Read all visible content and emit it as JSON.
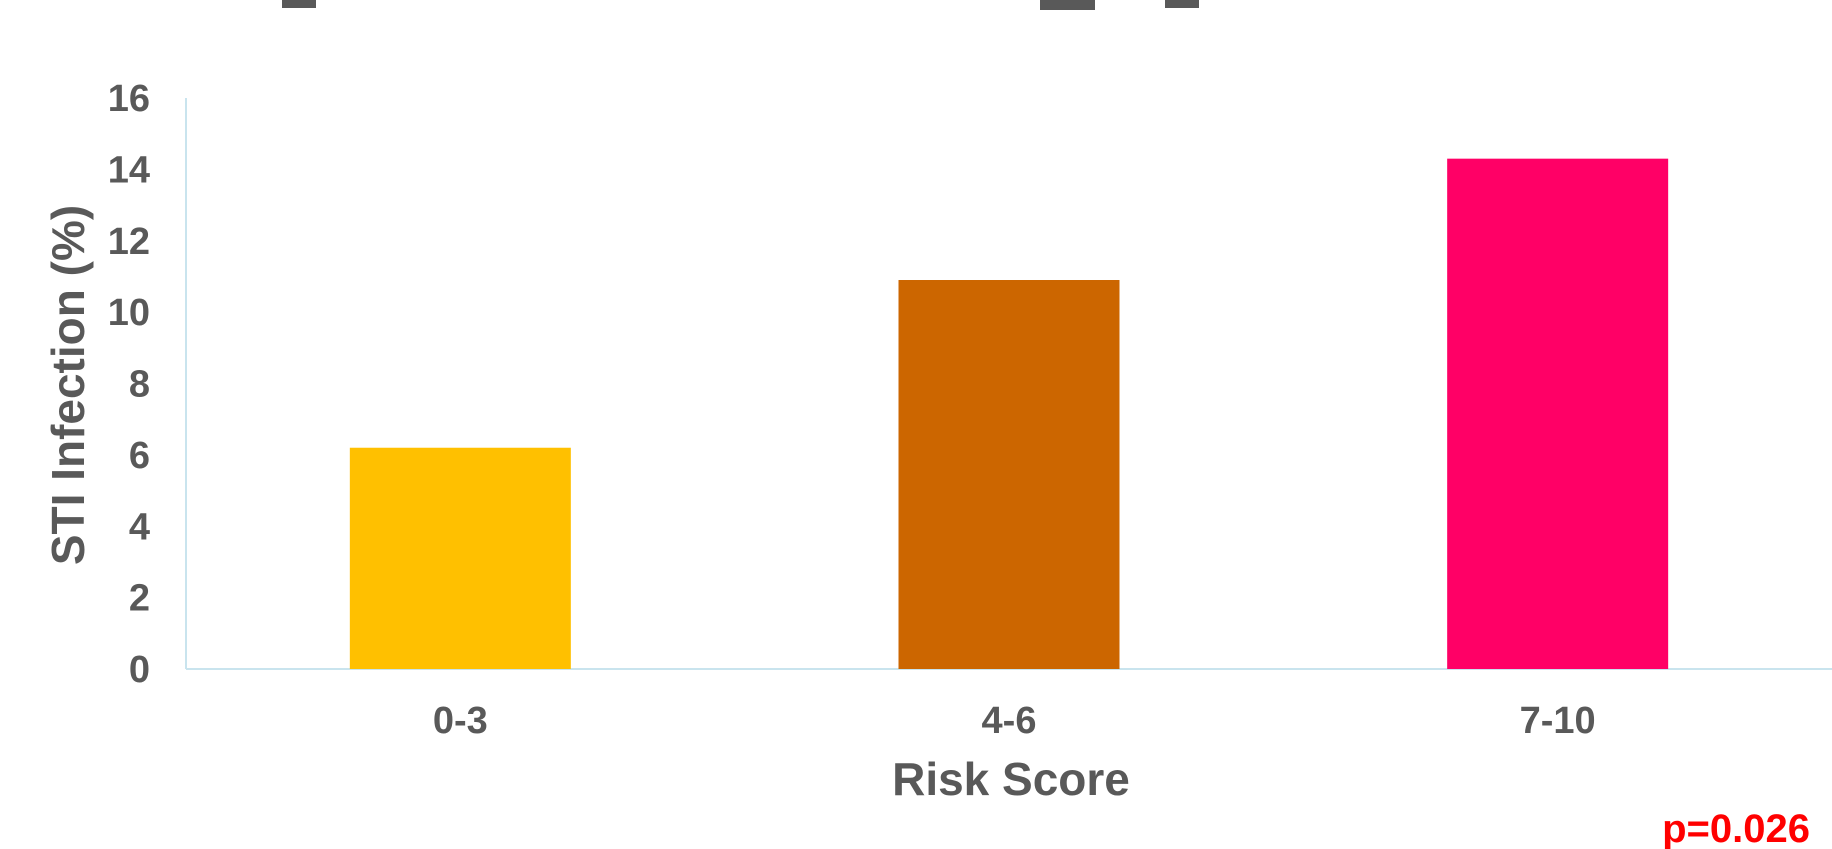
{
  "chart_data": {
    "type": "bar",
    "title": "",
    "categories": [
      "0-3",
      "4-6",
      "7-10"
    ],
    "values": [
      6.2,
      10.9,
      14.3
    ],
    "colors": [
      "#FFC000",
      "#CC6600",
      "#FF0066"
    ],
    "xlabel": "Risk Score",
    "ylabel": "STI Infection (%)",
    "ylim": [
      0,
      16
    ],
    "yticks": [
      0,
      2,
      4,
      6,
      8,
      10,
      12,
      14,
      16
    ],
    "grid": false,
    "annotations": [
      {
        "text": "p=0.026",
        "color": "#FF0000",
        "position": "bottom-right"
      }
    ]
  }
}
